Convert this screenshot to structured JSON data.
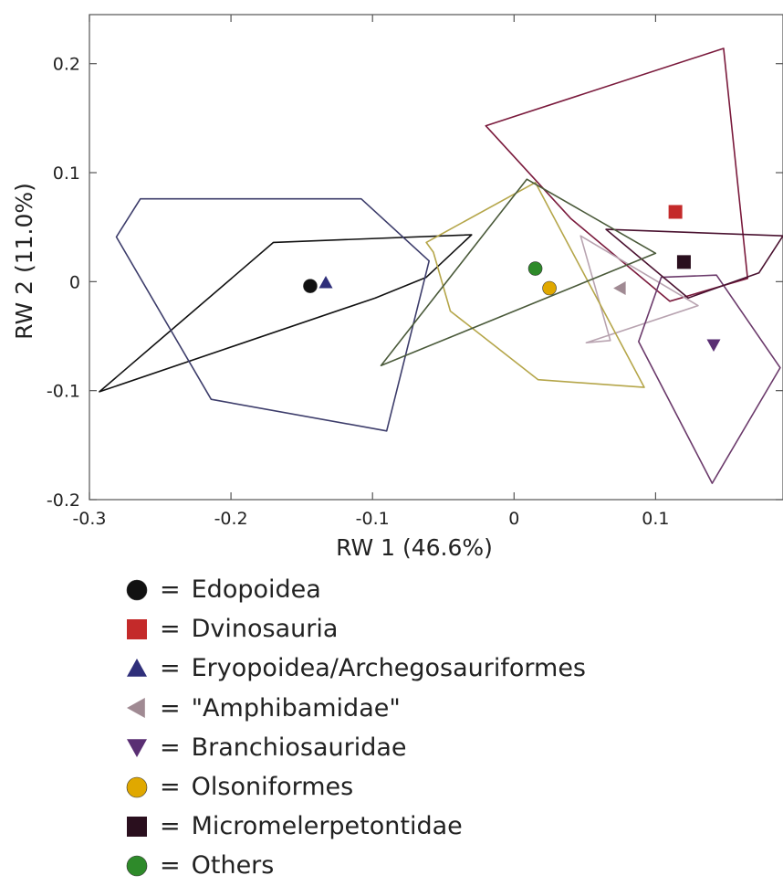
{
  "chart_data": {
    "type": "scatter",
    "xlabel": "RW 1 (46.6%)",
    "ylabel": "RW 2 (11.0%)",
    "xlim": [
      -0.3,
      0.19
    ],
    "ylim": [
      -0.2,
      0.245
    ],
    "x_ticks": [
      -0.3,
      -0.2,
      -0.1,
      0,
      0.1
    ],
    "x_tick_labels": [
      "-0.3",
      "-0.2",
      "-0.1",
      "0",
      "0.1"
    ],
    "y_ticks": [
      -0.2,
      -0.1,
      0,
      0.1,
      0.2
    ],
    "y_tick_labels": [
      "-0.2",
      "-0.1",
      "0",
      "0.1",
      "0.2"
    ],
    "legend_position": "bottom",
    "legend_separator": "=",
    "series": [
      {
        "name": "Edopoidea",
        "marker": "circle",
        "color": "#111111",
        "hull_color": "#111111",
        "centroid": [
          -0.144,
          -0.004
        ],
        "hull": [
          [
            -0.293,
            -0.101
          ],
          [
            -0.17,
            0.036
          ],
          [
            -0.03,
            0.043
          ],
          [
            -0.062,
            0.004
          ],
          [
            -0.098,
            -0.015
          ]
        ]
      },
      {
        "name": "Dvinosauria",
        "marker": "square",
        "color": "#c42a2a",
        "hull_color": "#7a1a3c",
        "centroid": [
          0.114,
          0.064
        ],
        "hull": [
          [
            -0.02,
            0.143
          ],
          [
            0.148,
            0.214
          ],
          [
            0.165,
            0.003
          ],
          [
            0.11,
            -0.018
          ],
          [
            0.04,
            0.058
          ]
        ]
      },
      {
        "name": "Eryopoidea/Archegosauriformes",
        "marker": "triangle-up",
        "color": "#2f2f7a",
        "hull_color": "#3d3d6b",
        "centroid": [
          -0.133,
          -0.001
        ],
        "hull": [
          [
            -0.264,
            0.076
          ],
          [
            -0.108,
            0.076
          ],
          [
            -0.06,
            0.019
          ],
          [
            -0.09,
            -0.137
          ],
          [
            -0.214,
            -0.108
          ],
          [
            -0.281,
            0.041
          ]
        ]
      },
      {
        "name": "\"Amphibamidae\"",
        "marker": "triangle-left",
        "color": "#a08a93",
        "hull_color": "#b8a3b0",
        "centroid": [
          0.075,
          -0.006
        ],
        "hull": [
          [
            0.047,
            0.042
          ],
          [
            0.13,
            -0.022
          ],
          [
            0.051,
            -0.056
          ],
          [
            0.068,
            -0.054
          ]
        ]
      },
      {
        "name": "Branchiosauridae",
        "marker": "triangle-down",
        "color": "#5a2f73",
        "hull_color": "#6b3a6b",
        "centroid": [
          0.141,
          -0.058
        ],
        "hull": [
          [
            0.104,
            0.004
          ],
          [
            0.143,
            0.006
          ],
          [
            0.188,
            -0.079
          ],
          [
            0.14,
            -0.185
          ],
          [
            0.088,
            -0.055
          ]
        ]
      },
      {
        "name": "Olsoniformes",
        "marker": "circle",
        "color": "#e0a800",
        "hull_color": "#b5a64a",
        "centroid": [
          0.025,
          -0.006
        ],
        "hull": [
          [
            -0.062,
            0.036
          ],
          [
            -0.057,
            0.027
          ],
          [
            -0.045,
            -0.027
          ],
          [
            0.017,
            -0.09
          ],
          [
            0.092,
            -0.097
          ],
          [
            0.015,
            0.091
          ]
        ]
      },
      {
        "name": "Micromelerpetontidae",
        "marker": "square",
        "color": "#2a0f1e",
        "hull_color": "#4a1230",
        "centroid": [
          0.12,
          0.018
        ],
        "hull": [
          [
            0.065,
            0.048
          ],
          [
            0.19,
            0.042
          ],
          [
            0.173,
            0.008
          ],
          [
            0.123,
            -0.015
          ]
        ]
      },
      {
        "name": "Others",
        "marker": "circle",
        "color": "#2e8a2a",
        "hull_color": "#4a5a3a",
        "centroid": [
          0.015,
          0.012
        ],
        "hull": [
          [
            -0.094,
            -0.077
          ],
          [
            0.009,
            0.094
          ],
          [
            0.1,
            0.026
          ]
        ]
      }
    ]
  }
}
